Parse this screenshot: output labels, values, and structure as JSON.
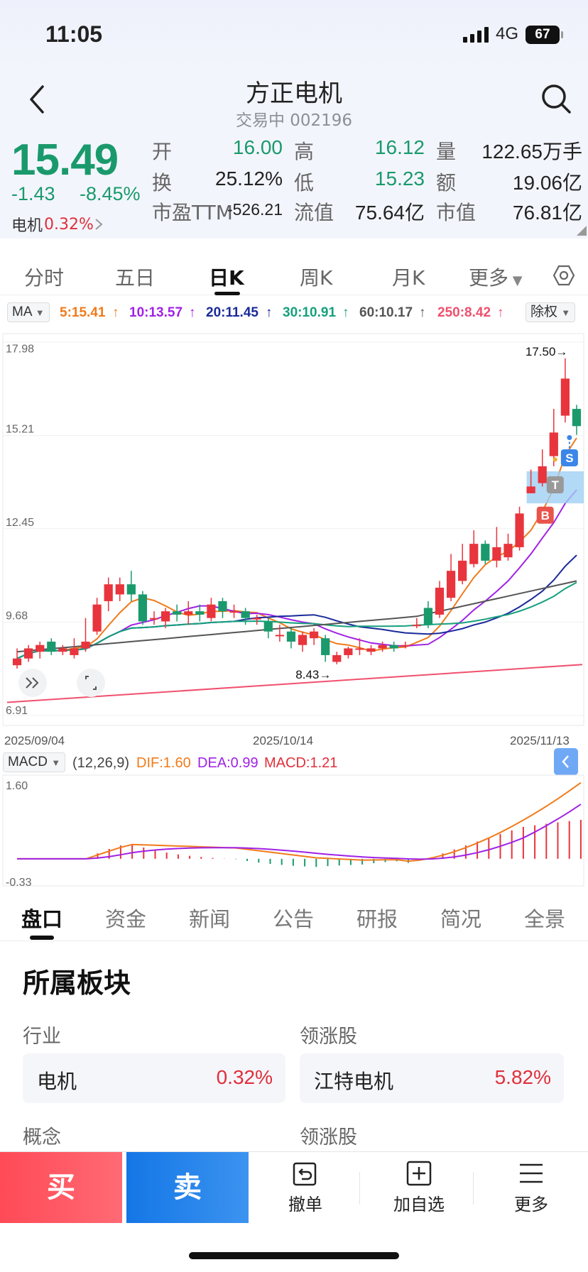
{
  "status": {
    "time": "11:05",
    "network": "4G",
    "battery": "67"
  },
  "header": {
    "title": "方正电机",
    "subtitle": "交易中 002196"
  },
  "quote": {
    "price": "15.49",
    "change": "-1.43",
    "change_pct": "-8.45%",
    "sector_name": "电机",
    "sector_pct": "0.32%",
    "fields": [
      {
        "label": "开",
        "value": "16.00",
        "color": "green"
      },
      {
        "label": "高",
        "value": "16.12",
        "color": "green"
      },
      {
        "label": "量",
        "value": "122.65万手",
        "color": "dark"
      },
      {
        "label": "换",
        "value": "25.12%",
        "color": "dark"
      },
      {
        "label": "低",
        "value": "15.23",
        "color": "green"
      },
      {
        "label": "额",
        "value": "19.06亿",
        "color": "dark"
      },
      {
        "label": "市盈TTM",
        "value": "-526.21",
        "color": "dark"
      },
      {
        "label": "流值",
        "value": "75.64亿",
        "color": "dark"
      },
      {
        "label": "市值",
        "value": "76.81亿",
        "color": "dark"
      }
    ]
  },
  "chart_tabs": [
    "分时",
    "五日",
    "日K",
    "周K",
    "月K",
    "更多"
  ],
  "ma_bar": {
    "selector": "MA",
    "items": [
      {
        "text": "5:15.41",
        "color": "#f07b1b"
      },
      {
        "text": "10:13.57",
        "color": "#a021e6"
      },
      {
        "text": "20:11.45",
        "color": "#1a2a9a"
      },
      {
        "text": "30:10.91",
        "color": "#16a07e"
      },
      {
        "text": "60:10.17",
        "color": "#555555"
      },
      {
        "text": "250:8.42",
        "color": "#f0506e"
      }
    ],
    "adjust": "除权"
  },
  "chart_data": {
    "type": "candlestick",
    "y_ticks": [
      "17.98",
      "15.21",
      "12.45",
      "9.68",
      "6.91"
    ],
    "ylim": [
      6.91,
      17.98
    ],
    "dates": [
      "2025/09/04",
      "2025/10/14",
      "2025/11/13"
    ],
    "high_marker": "17.50",
    "low_marker": "8.43",
    "trade_marks": [
      "B",
      "T",
      "S"
    ],
    "candles": [
      [
        8.4,
        8.6,
        8.9,
        8.3
      ],
      [
        8.6,
        8.9,
        9.0,
        8.5
      ],
      [
        8.8,
        9.0,
        9.1,
        8.6
      ],
      [
        9.1,
        8.8,
        9.2,
        8.7
      ],
      [
        8.8,
        8.9,
        9.0,
        8.7
      ],
      [
        8.7,
        8.9,
        9.2,
        8.6
      ],
      [
        8.9,
        9.1,
        9.8,
        8.8
      ],
      [
        9.4,
        10.2,
        10.4,
        9.3
      ],
      [
        10.3,
        10.8,
        11.0,
        10.0
      ],
      [
        10.5,
        10.8,
        11.0,
        10.3
      ],
      [
        10.8,
        10.5,
        11.2,
        10.3
      ],
      [
        10.5,
        9.7,
        10.6,
        9.6
      ],
      [
        9.8,
        9.8,
        10.0,
        9.6
      ],
      [
        9.7,
        10.0,
        10.1,
        9.5
      ],
      [
        10.0,
        9.9,
        10.2,
        9.7
      ],
      [
        9.9,
        10.0,
        10.3,
        9.6
      ],
      [
        10.0,
        9.9,
        10.2,
        9.7
      ],
      [
        9.8,
        10.2,
        10.4,
        9.7
      ],
      [
        10.3,
        10.0,
        10.4,
        9.8
      ],
      [
        10.0,
        10.0,
        10.2,
        9.8
      ],
      [
        10.0,
        9.8,
        10.1,
        9.6
      ],
      [
        9.8,
        9.8,
        9.9,
        9.6
      ],
      [
        9.7,
        9.4,
        9.8,
        9.2
      ],
      [
        9.3,
        9.3,
        9.6,
        9.1
      ],
      [
        9.4,
        9.1,
        9.5,
        8.9
      ],
      [
        9.0,
        9.3,
        9.4,
        8.8
      ],
      [
        9.2,
        9.4,
        9.5,
        9.0
      ],
      [
        9.2,
        8.7,
        9.3,
        8.5
      ],
      [
        8.5,
        8.7,
        8.8,
        8.43
      ],
      [
        8.7,
        8.9,
        8.95,
        8.6
      ],
      [
        8.9,
        8.9,
        9.2,
        8.7
      ],
      [
        8.8,
        8.9,
        9.0,
        8.7
      ],
      [
        8.9,
        9.0,
        9.1,
        8.8
      ],
      [
        9.0,
        8.9,
        9.1,
        8.8
      ],
      [
        9.0,
        9.0,
        9.1,
        8.9
      ],
      [
        9.6,
        9.6,
        9.8,
        9.5
      ],
      [
        10.1,
        9.6,
        10.3,
        9.5
      ],
      [
        9.9,
        10.7,
        10.9,
        9.8
      ],
      [
        10.4,
        11.2,
        11.7,
        10.3
      ],
      [
        10.9,
        11.5,
        12.0,
        10.8
      ],
      [
        11.4,
        12.0,
        12.4,
        11.3
      ],
      [
        12.0,
        11.5,
        12.1,
        11.4
      ],
      [
        11.5,
        11.9,
        12.5,
        11.3
      ],
      [
        11.6,
        12.0,
        12.3,
        11.5
      ],
      [
        11.9,
        12.9,
        13.1,
        11.8
      ],
      [
        13.5,
        13.7,
        14.2,
        13.5
      ],
      [
        13.8,
        14.3,
        14.8,
        13.7
      ],
      [
        14.6,
        15.3,
        16.0,
        14.3
      ],
      [
        15.8,
        16.9,
        17.5,
        15.6
      ],
      [
        16.0,
        15.49,
        16.12,
        15.23
      ]
    ]
  },
  "macd": {
    "selector": "MACD",
    "params": "(12,26,9)",
    "dif": "DIF:1.60",
    "dea": "DEA:0.99",
    "macd": "MACD:1.21",
    "y_top": "1.60",
    "y_bottom": "-0.33"
  },
  "detail_tabs": [
    "盘口",
    "资金",
    "新闻",
    "公告",
    "研报",
    "简况",
    "全景"
  ],
  "section": {
    "title": "所属板块",
    "industry_label": "行业",
    "leader_label": "领涨股",
    "industry_name": "电机",
    "industry_pct": "0.32%",
    "leader_name": "江特电机",
    "leader_pct": "5.82%",
    "concept_label": "概念",
    "leader_label2": "领涨股"
  },
  "bottom": {
    "buy": "买",
    "sell": "卖",
    "cancel": "撤单",
    "watch": "加自选",
    "more": "更多"
  }
}
